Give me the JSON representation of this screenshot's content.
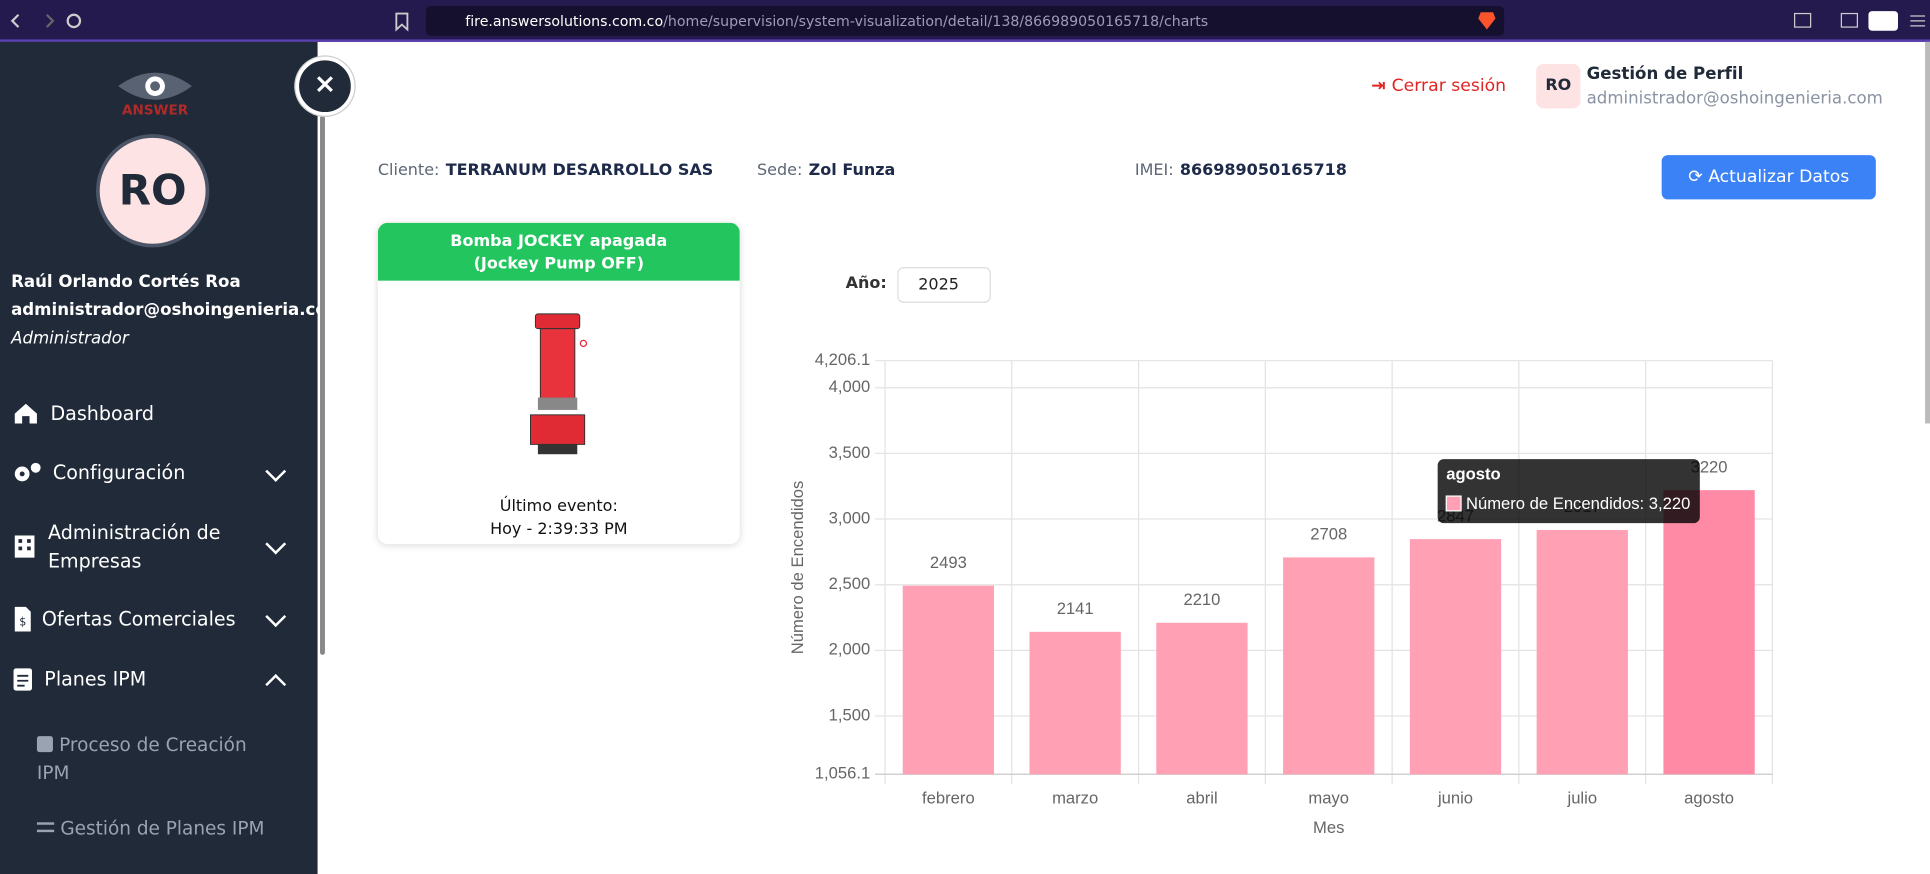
{
  "browser": {
    "url_host": "fire.answersolutions.com.co",
    "url_path": "/home/supervision/system-visualization/detail/138/866989050165718/charts"
  },
  "sidebar": {
    "logo": "ANSWER",
    "avatar": "RO",
    "user_name": "Raúl Orlando Cortés Roa",
    "user_email": "administrador@oshoingenieria.com",
    "user_role": "Administrador",
    "menu": [
      "Dashboard",
      "Configuración",
      "Administración de Empresas",
      "Ofertas Comerciales",
      "Planes IPM"
    ],
    "submenu": [
      "Proceso de Creación IPM",
      "Gestión de Planes IPM"
    ]
  },
  "header": {
    "logout": "Cerrar sesión",
    "profile_initials": "RO",
    "profile_title": "Gestión de Perfil",
    "profile_email": "administrador@oshoingenieria.com"
  },
  "info": {
    "client_label": "Cliente:",
    "client": "TERRANUM DESARROLLO SAS",
    "site_label": "Sede:",
    "site": "Zol Funza",
    "imei_label": "IMEI:",
    "imei": "866989050165718",
    "refresh": "Actualizar Datos"
  },
  "status": {
    "title": "Bomba JOCKEY apagada",
    "subtitle": "(Jockey Pump OFF)",
    "event_label": "Último evento:",
    "event_time": "Hoy - 2:39:33 PM"
  },
  "year_filter": {
    "label": "Año:",
    "value": "2025"
  },
  "chart_data": {
    "type": "bar",
    "x_label": "Mes",
    "y_label": "Número de Encendidos",
    "categories": [
      "febrero",
      "marzo",
      "abril",
      "mayo",
      "junio",
      "julio",
      "agosto"
    ],
    "series": [
      {
        "name": "Número de Encendidos",
        "color": "#ffa0b4",
        "values": [
          2493,
          2141,
          2210,
          2708,
          2847,
          2917,
          3220
        ]
      }
    ],
    "highlight_color": "#ff8aa5",
    "ylim": [
      1056.1,
      4206.1
    ],
    "yticks": [
      {
        "value": 1056.1,
        "label": "1,056.1"
      },
      {
        "value": 1500,
        "label": "1,500"
      },
      {
        "value": 2000,
        "label": "2,000"
      },
      {
        "value": 2500,
        "label": "2,500"
      },
      {
        "value": 3000,
        "label": "3,000"
      },
      {
        "value": 3500,
        "label": "3,500"
      },
      {
        "value": 4000,
        "label": "4,000"
      },
      {
        "value": 4206.1,
        "label": "4,206.1"
      }
    ],
    "grid": true,
    "tooltip": {
      "title": "agosto",
      "text": "Número de Encendidos: 3,220"
    }
  }
}
